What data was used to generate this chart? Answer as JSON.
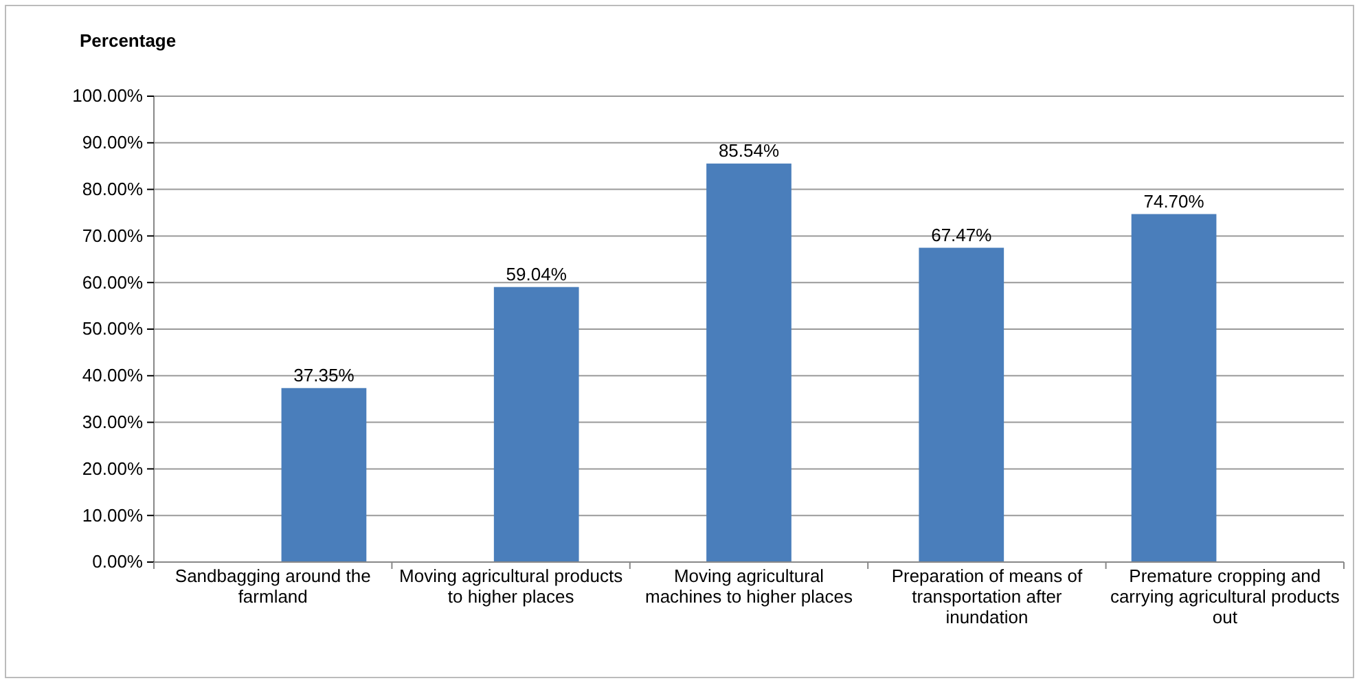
{
  "chart_data": {
    "type": "bar",
    "ylabel": "Percentage",
    "categories": [
      "Sandbagging around the farmland",
      "Moving agricultural products to higher places",
      "Moving agricultural machines to higher places",
      "Preparation of means of transportation after inundation",
      "Premature cropping and carrying agricultural products out"
    ],
    "values": [
      37.35,
      59.04,
      85.54,
      67.47,
      74.7
    ],
    "value_labels": [
      "37.35%",
      "59.04%",
      "85.54%",
      "67.47%",
      "74.70%"
    ],
    "color": "#4a7ebb",
    "ylim": [
      0,
      100
    ],
    "yticks": [
      {
        "value": 0,
        "label": "0.00%"
      },
      {
        "value": 10,
        "label": "10.00%"
      },
      {
        "value": 20,
        "label": "20.00%"
      },
      {
        "value": 30,
        "label": "30.00%"
      },
      {
        "value": 40,
        "label": "40.00%"
      },
      {
        "value": 50,
        "label": "50.00%"
      },
      {
        "value": 60,
        "label": "60.00%"
      },
      {
        "value": 70,
        "label": "70.00%"
      },
      {
        "value": 80,
        "label": "80.00%"
      },
      {
        "value": 90,
        "label": "90.00%"
      },
      {
        "value": 100,
        "label": "100.00%"
      }
    ],
    "grid": "y"
  }
}
